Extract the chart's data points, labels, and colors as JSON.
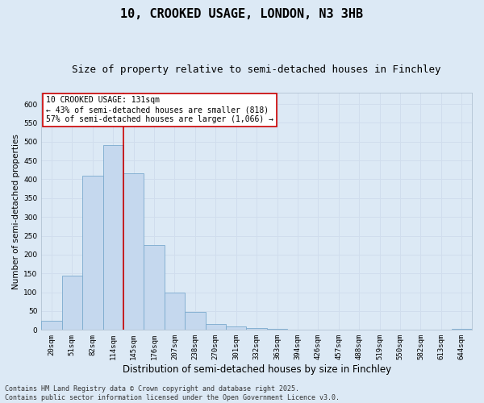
{
  "title": "10, CROOKED USAGE, LONDON, N3 3HB",
  "subtitle": "Size of property relative to semi-detached houses in Finchley",
  "xlabel": "Distribution of semi-detached houses by size in Finchley",
  "ylabel": "Number of semi-detached properties",
  "categories": [
    "20sqm",
    "51sqm",
    "82sqm",
    "114sqm",
    "145sqm",
    "176sqm",
    "207sqm",
    "238sqm",
    "270sqm",
    "301sqm",
    "332sqm",
    "363sqm",
    "394sqm",
    "426sqm",
    "457sqm",
    "488sqm",
    "519sqm",
    "550sqm",
    "582sqm",
    "613sqm",
    "644sqm"
  ],
  "values": [
    25,
    145,
    410,
    490,
    415,
    225,
    100,
    47,
    15,
    10,
    5,
    2,
    1,
    0,
    0,
    0,
    0,
    0,
    0,
    0,
    3
  ],
  "bar_color": "#c5d8ee",
  "bar_edge_color": "#7aaace",
  "grid_color": "#d0dded",
  "background_color": "#dce9f5",
  "plot_bg_color": "#dce9f5",
  "vline_color": "#cc0000",
  "vline_x": 3.5,
  "annotation_text": "10 CROOKED USAGE: 131sqm\n← 43% of semi-detached houses are smaller (818)\n57% of semi-detached houses are larger (1,066) →",
  "annotation_box_facecolor": "#ffffff",
  "annotation_box_edgecolor": "#cc0000",
  "ylim": [
    0,
    630
  ],
  "yticks": [
    0,
    50,
    100,
    150,
    200,
    250,
    300,
    350,
    400,
    450,
    500,
    550,
    600
  ],
  "footnote": "Contains HM Land Registry data © Crown copyright and database right 2025.\nContains public sector information licensed under the Open Government Licence v3.0.",
  "title_fontsize": 11,
  "subtitle_fontsize": 9,
  "xlabel_fontsize": 8.5,
  "ylabel_fontsize": 7.5,
  "tick_fontsize": 6.5,
  "annotation_fontsize": 7,
  "footnote_fontsize": 6
}
